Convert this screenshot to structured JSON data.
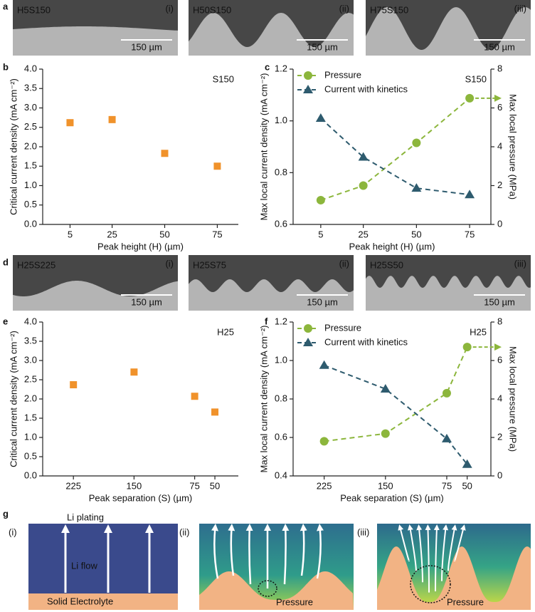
{
  "figure": {
    "panels": [
      "a",
      "b",
      "c",
      "d",
      "e",
      "f",
      "g"
    ],
    "images": [
      {
        "name": "H5S150",
        "index": "(i)",
        "scale": "150 µm"
      },
      {
        "name": "H50S150",
        "index": "(ii)",
        "scale": "150 µm"
      },
      {
        "name": "H75S150",
        "index": "(iii)",
        "scale": "150 µm"
      },
      {
        "name": "H25S225",
        "index": "(i)",
        "scale": "150 µm"
      },
      {
        "name": "H25S75",
        "index": "(ii)",
        "scale": "150 µm"
      },
      {
        "name": "H25S50",
        "index": "(iii)",
        "scale": "150 µm"
      }
    ],
    "schematic": {
      "indices": [
        "(i)",
        "(ii)",
        "(iii)"
      ],
      "plating": "Li plating",
      "flow": "Li flow",
      "electrolyte": "Solid Electrolyte",
      "pressure": [
        "Pressure",
        "Pressure"
      ]
    }
  },
  "chart_data": [
    {
      "type": "scatter",
      "annotation": "S150",
      "xlabel": "Peak height (H) (µm)",
      "ylabel": "Critical current density (mA cm⁻²)",
      "x": [
        5,
        25,
        50,
        75
      ],
      "values": [
        2.62,
        2.7,
        1.83,
        1.5
      ],
      "color": "#f0922b",
      "xlim": [
        -8,
        85
      ],
      "xticks": [
        5,
        25,
        50,
        75
      ],
      "ylim": [
        0,
        4
      ],
      "yticks": [
        {
          "value": 0,
          "label": "0.0"
        },
        0.5,
        {
          "value": 1,
          "label": "1.0"
        },
        1.5,
        {
          "value": 2,
          "label": "2.0"
        },
        2.5,
        {
          "value": 3,
          "label": "3.0"
        },
        3.5,
        {
          "value": 4,
          "label": "4.0"
        }
      ]
    },
    {
      "type": "line",
      "annotation": "S150",
      "legend": "upper left",
      "xlabel": "Peak height (H) (µm)",
      "ylabel": "Max local current density (mA cm⁻²)",
      "y2label": "Max local pressure (MPa)",
      "x": [
        5,
        25,
        50,
        75
      ],
      "xlim": [
        -8,
        85
      ],
      "xticks": [
        5,
        25,
        50,
        75
      ],
      "ylim": [
        0.6,
        1.2
      ],
      "yticks": [
        0.6,
        0.8,
        {
          "value": 1,
          "label": "1.0"
        },
        1.2
      ],
      "y2lim": [
        0,
        8
      ],
      "y2ticks": [
        0,
        2,
        4,
        6,
        8
      ],
      "series": [
        {
          "name": "Pressure",
          "color": "#8cb63c",
          "marker": "circle",
          "axis": "y2",
          "values": [
            1.25,
            2.0,
            4.2,
            6.5
          ]
        },
        {
          "name": "Current with kinetics",
          "color": "#2e5b6e",
          "marker": "triangle",
          "values": [
            1.01,
            0.86,
            0.74,
            0.715
          ]
        }
      ]
    },
    {
      "type": "scatter",
      "annotation": "H25",
      "xlabel": "Peak separation (S) (µm)",
      "ylabel": "Critical current density (mA cm⁻²)",
      "x": [
        225,
        150,
        75,
        50
      ],
      "values": [
        2.37,
        2.7,
        2.07,
        1.66
      ],
      "color": "#f0922b",
      "xlim": [
        263,
        21
      ],
      "xticks": [
        225,
        150,
        75,
        50
      ],
      "ylim": [
        0,
        4
      ],
      "yticks": [
        {
          "value": 0,
          "label": "0.0"
        },
        0.5,
        {
          "value": 1,
          "label": "1.0"
        },
        1.5,
        {
          "value": 2,
          "label": "2.0"
        },
        2.5,
        {
          "value": 3,
          "label": "3.0"
        },
        3.5,
        {
          "value": 4,
          "label": "4.0"
        }
      ]
    },
    {
      "type": "line",
      "annotation": "H25",
      "legend": "upper left",
      "xlabel": "Peak separation (S) (µm)",
      "ylabel": "Max local current density (mA cm⁻²)",
      "y2label": "Max local pressure (MPa)",
      "x": [
        225,
        150,
        75,
        50
      ],
      "xlim": [
        263,
        21
      ],
      "xticks": [
        225,
        150,
        75,
        50
      ],
      "ylim": [
        0.4,
        1.2
      ],
      "yticks": [
        0.4,
        0.6,
        0.8,
        {
          "value": 1,
          "label": "1.0"
        },
        1.2
      ],
      "y2lim": [
        0,
        8
      ],
      "y2ticks": [
        0,
        2,
        4,
        6,
        8
      ],
      "series": [
        {
          "name": "Pressure",
          "color": "#8cb63c",
          "marker": "circle",
          "axis": "y2",
          "values": [
            1.8,
            2.2,
            4.3,
            6.7
          ]
        },
        {
          "name": "Current with kinetics",
          "color": "#2e5b6e",
          "marker": "triangle",
          "values": [
            0.975,
            0.852,
            0.593,
            0.46
          ]
        }
      ]
    }
  ]
}
